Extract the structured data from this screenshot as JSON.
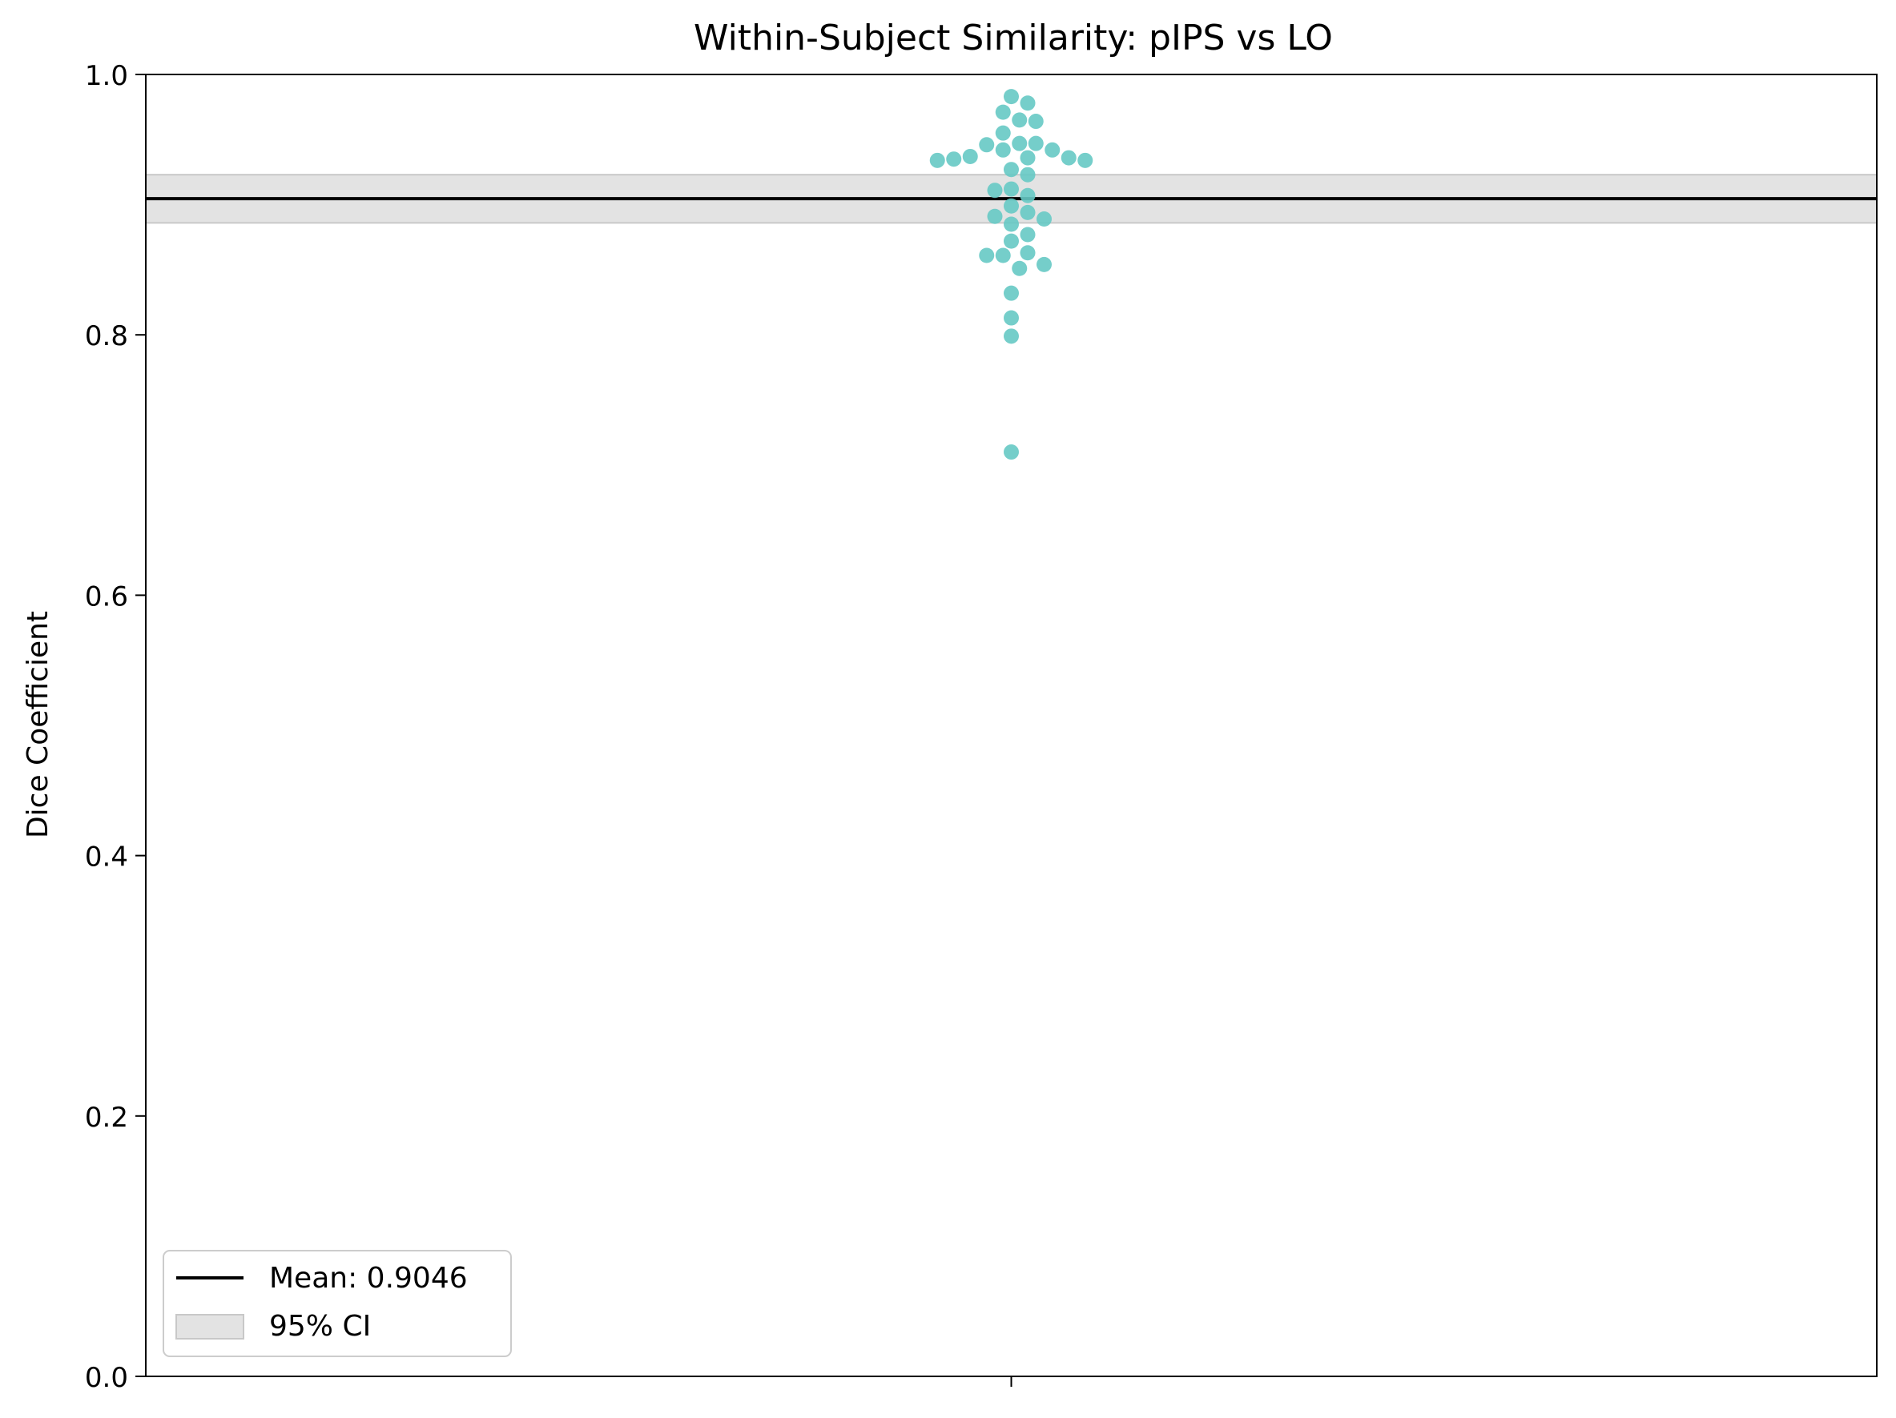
{
  "chart_data": {
    "type": "scatter",
    "subtype": "swarm",
    "title": "Within-Subject Similarity: pIPS vs LO",
    "xlabel": "",
    "ylabel": "Dice Coefficient",
    "ylim": [
      0.0,
      1.0
    ],
    "yticks": [
      "0.0",
      "0.2",
      "0.4",
      "0.6",
      "0.8",
      "1.0"
    ],
    "grid": false,
    "legend_position": "lower-left",
    "point_color": "#66c9c4",
    "mean": {
      "label": "Mean: 0.9046",
      "value": 0.9046,
      "color": "#000000"
    },
    "ci": {
      "label": "95% CI",
      "low": 0.886,
      "high": 0.923,
      "color": "#d9d9d9"
    },
    "points": [
      0.983,
      0.978,
      0.971,
      0.965,
      0.964,
      0.955,
      0.947,
      0.947,
      0.946,
      0.942,
      0.942,
      0.937,
      0.936,
      0.936,
      0.935,
      0.934,
      0.934,
      0.927,
      0.923,
      0.912,
      0.911,
      0.907,
      0.899,
      0.894,
      0.891,
      0.889,
      0.885,
      0.877,
      0.872,
      0.863,
      0.861,
      0.861,
      0.854,
      0.851,
      0.832,
      0.813,
      0.799,
      0.71
    ]
  }
}
